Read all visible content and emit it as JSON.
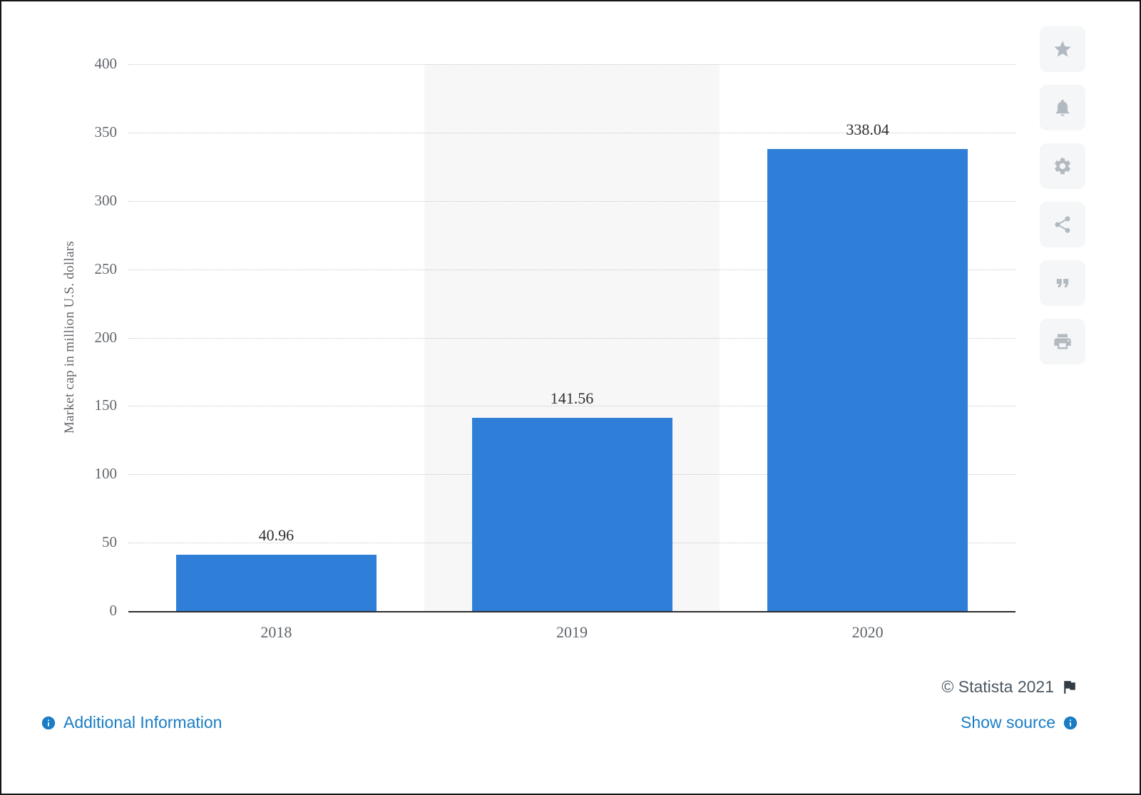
{
  "chart_data": {
    "type": "bar",
    "categories": [
      "2018",
      "2019",
      "2020"
    ],
    "values": [
      40.96,
      141.56,
      338.04
    ],
    "value_labels": [
      "40.96",
      "141.56",
      "338.04"
    ],
    "title": "",
    "xlabel": "",
    "ylabel": "Market cap in million U.S. dollars",
    "ylim": [
      0,
      400
    ],
    "yticks": [
      0,
      50,
      100,
      150,
      200,
      250,
      300,
      350,
      400
    ],
    "grid": "horizontal dotted",
    "legend": "none",
    "bar_color": "#2f7ed8",
    "highlight_index": 1,
    "highlight_color": "#f7f7f7"
  },
  "toolbar": {
    "icons": [
      "star-icon",
      "bell-icon",
      "gear-icon",
      "share-icon",
      "quote-icon",
      "print-icon"
    ]
  },
  "footer": {
    "copyright": "© Statista 2021",
    "additional_info_label": "Additional Information",
    "show_source_label": "Show source",
    "link_color": "#1a7dc4"
  }
}
